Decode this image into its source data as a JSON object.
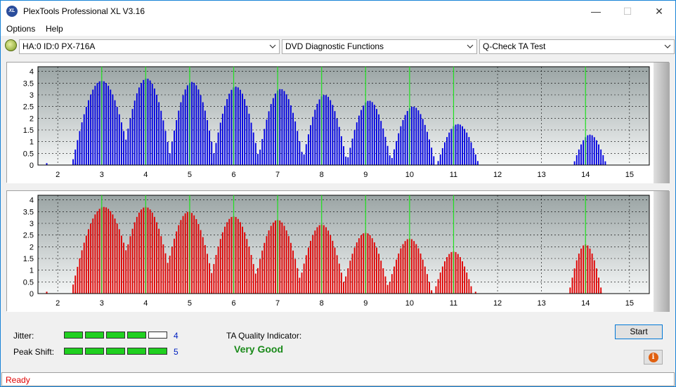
{
  "window": {
    "title": "PlexTools Professional XL V3.16",
    "icon_name": "plextools-logo-icon",
    "icon_text": "XL",
    "minimize": "—",
    "maximize": "☐",
    "close": "✕"
  },
  "menu": [
    "Options",
    "Help"
  ],
  "toolbar": {
    "drive": "HA:0 ID:0  PX-716A",
    "function": "DVD Diagnostic Functions",
    "test": "Q-Check TA Test"
  },
  "chart_data": [
    {
      "type": "bar",
      "x_ticks": [
        2,
        3,
        4,
        5,
        6,
        7,
        8,
        9,
        10,
        11,
        12,
        13,
        14,
        15
      ],
      "y_ticks": [
        "0",
        "0.5",
        "1",
        "1.5",
        "2",
        "2.5",
        "3",
        "3.5",
        "4"
      ],
      "ylim": [
        0,
        4.2
      ],
      "xlim": [
        1.55,
        15.45
      ],
      "bar_color": "#0000e0",
      "marker_color": "#20e020",
      "markers": [
        3,
        4,
        5,
        6,
        7,
        8,
        9,
        10,
        11,
        14
      ],
      "peaks": [
        {
          "center": 3.0,
          "height": 3.6,
          "width": 0.68
        },
        {
          "center": 4.02,
          "height": 3.7,
          "width": 0.58
        },
        {
          "center": 5.05,
          "height": 3.55,
          "width": 0.55
        },
        {
          "center": 6.05,
          "height": 3.35,
          "width": 0.55
        },
        {
          "center": 7.07,
          "height": 3.25,
          "width": 0.54
        },
        {
          "center": 8.07,
          "height": 3.0,
          "width": 0.52
        },
        {
          "center": 9.08,
          "height": 2.75,
          "width": 0.52
        },
        {
          "center": 10.08,
          "height": 2.5,
          "width": 0.52
        },
        {
          "center": 11.1,
          "height": 1.75,
          "width": 0.48
        },
        {
          "center": 14.1,
          "height": 1.3,
          "width": 0.38
        }
      ],
      "floor": [
        [
          1.75,
          0.1
        ],
        [
          2.0,
          0.0
        ]
      ]
    },
    {
      "type": "bar",
      "x_ticks": [
        2,
        3,
        4,
        5,
        6,
        7,
        8,
        9,
        10,
        11,
        12,
        13,
        14,
        15
      ],
      "y_ticks": [
        "0",
        "0.5",
        "1",
        "1.5",
        "2",
        "2.5",
        "3",
        "3.5",
        "4"
      ],
      "ylim": [
        0,
        4.2
      ],
      "xlim": [
        1.55,
        15.45
      ],
      "bar_color": "#e00000",
      "marker_color": "#20e020",
      "markers": [
        3,
        4,
        5,
        6,
        7,
        8,
        9,
        10,
        11,
        14
      ],
      "peaks": [
        {
          "center": 3.05,
          "height": 3.7,
          "width": 0.75
        },
        {
          "center": 4.0,
          "height": 3.7,
          "width": 0.65
        },
        {
          "center": 4.98,
          "height": 3.5,
          "width": 0.62
        },
        {
          "center": 6.0,
          "height": 3.3,
          "width": 0.6
        },
        {
          "center": 7.0,
          "height": 3.15,
          "width": 0.58
        },
        {
          "center": 8.0,
          "height": 2.95,
          "width": 0.56
        },
        {
          "center": 9.0,
          "height": 2.6,
          "width": 0.55
        },
        {
          "center": 10.0,
          "height": 2.35,
          "width": 0.52
        },
        {
          "center": 11.0,
          "height": 1.8,
          "width": 0.45
        },
        {
          "center": 14.0,
          "height": 2.1,
          "width": 0.38
        }
      ],
      "floor": [
        [
          1.75,
          0.1
        ],
        [
          2.0,
          0.0
        ]
      ]
    }
  ],
  "jitter": {
    "label": "Jitter:",
    "value": "4",
    "level": 4,
    "max": 5
  },
  "peak_shift": {
    "label": "Peak Shift:",
    "value": "5",
    "level": 5,
    "max": 5
  },
  "ta_quality": {
    "label": "TA Quality Indicator:",
    "value": "Very Good"
  },
  "start_button": "Start",
  "info_button": "i",
  "status": "Ready"
}
